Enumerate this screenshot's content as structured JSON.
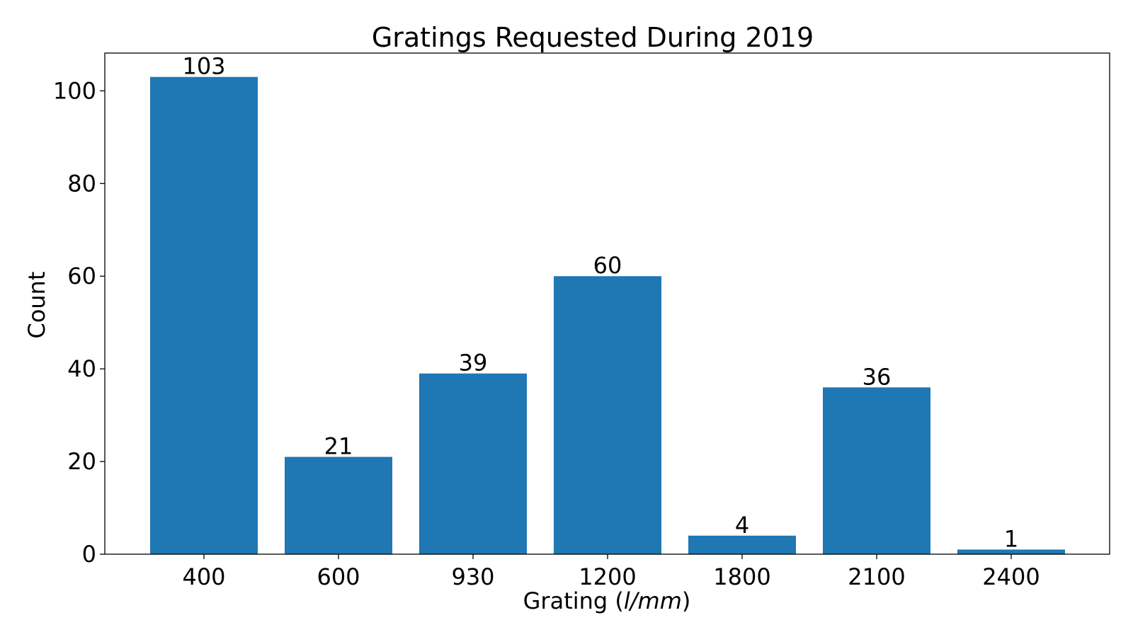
{
  "chart_data": {
    "type": "bar",
    "title": "Gratings Requested During 2019",
    "xlabel": "Grating (l/mm)",
    "xlabel_parts": {
      "prefix": "Grating (",
      "unit": "l/mm",
      "suffix": ")"
    },
    "ylabel": "Count",
    "categories": [
      "400",
      "600",
      "930",
      "1200",
      "1800",
      "2100",
      "2400"
    ],
    "values": [
      103,
      21,
      39,
      60,
      4,
      36,
      1
    ],
    "data_labels": [
      "103",
      "21",
      "39",
      "60",
      "4",
      "36",
      "1"
    ],
    "ylim": [
      0,
      108.15
    ],
    "yticks": [
      0,
      20,
      40,
      60,
      80,
      100
    ],
    "grid": false,
    "legend": "none",
    "bar_color": "#1f77b4"
  }
}
